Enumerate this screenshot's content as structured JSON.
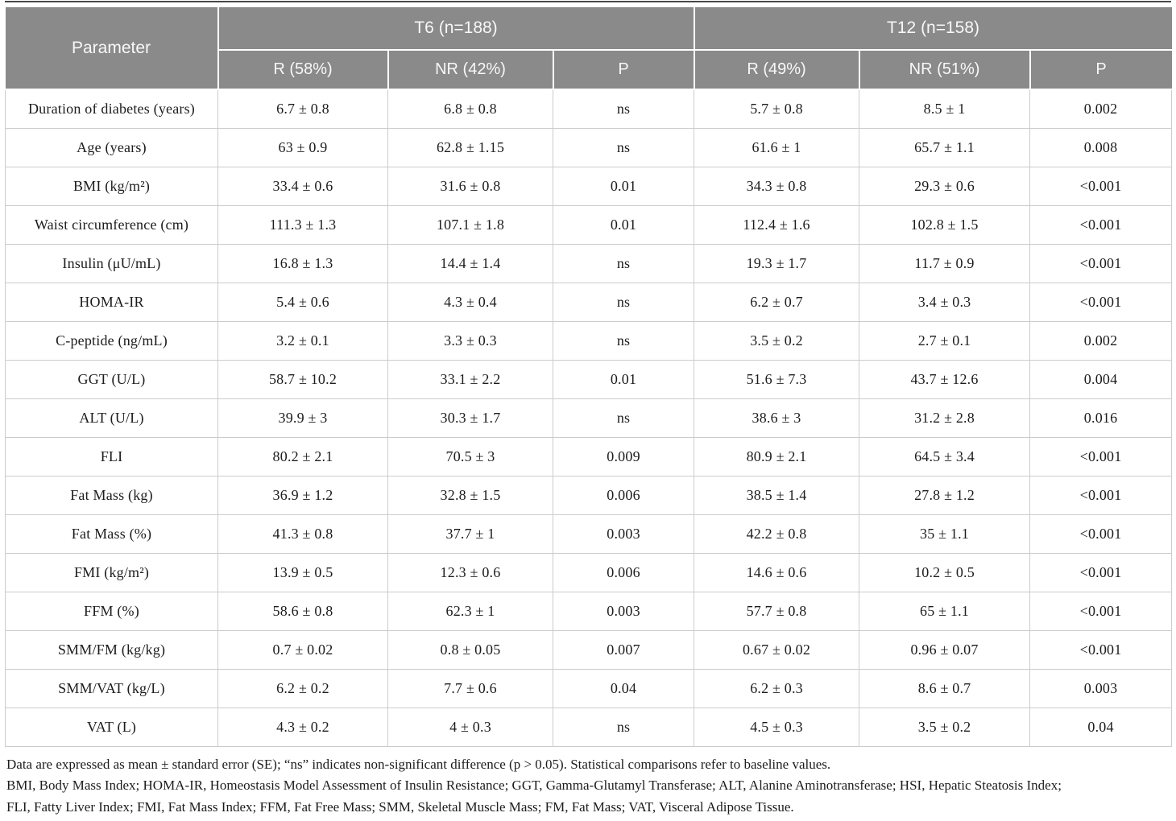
{
  "table": {
    "header": {
      "parameter_label": "Parameter",
      "groups": [
        {
          "label": "T6 (n=188)",
          "subcolumns": [
            "R (58%)",
            "NR (42%)",
            "P"
          ]
        },
        {
          "label": "T12 (n=158)",
          "subcolumns": [
            "R (49%)",
            "NR (51%)",
            "P"
          ]
        }
      ]
    },
    "rows": [
      {
        "parameter": "Duration of diabetes (years)",
        "t6_r": "6.7 ± 0.8",
        "t6_nr": "6.8 ± 0.8",
        "t6_p": "ns",
        "t12_r": "5.7 ± 0.8",
        "t12_nr": "8.5 ± 1",
        "t12_p": "0.002"
      },
      {
        "parameter": "Age (years)",
        "t6_r": "63 ± 0.9",
        "t6_nr": "62.8 ± 1.15",
        "t6_p": "ns",
        "t12_r": "61.6 ± 1",
        "t12_nr": "65.7 ± 1.1",
        "t12_p": "0.008"
      },
      {
        "parameter": "BMI (kg/m²)",
        "t6_r": "33.4 ± 0.6",
        "t6_nr": "31.6 ± 0.8",
        "t6_p": "0.01",
        "t12_r": "34.3 ± 0.8",
        "t12_nr": "29.3 ± 0.6",
        "t12_p": "<0.001"
      },
      {
        "parameter": "Waist circumference (cm)",
        "t6_r": "111.3 ± 1.3",
        "t6_nr": "107.1 ± 1.8",
        "t6_p": "0.01",
        "t12_r": "112.4 ± 1.6",
        "t12_nr": "102.8 ± 1.5",
        "t12_p": "<0.001"
      },
      {
        "parameter": "Insulin (μU/mL)",
        "t6_r": "16.8 ± 1.3",
        "t6_nr": "14.4 ± 1.4",
        "t6_p": "ns",
        "t12_r": "19.3 ± 1.7",
        "t12_nr": "11.7 ± 0.9",
        "t12_p": "<0.001"
      },
      {
        "parameter": "HOMA-IR",
        "t6_r": "5.4 ± 0.6",
        "t6_nr": "4.3 ± 0.4",
        "t6_p": "ns",
        "t12_r": "6.2 ± 0.7",
        "t12_nr": "3.4 ± 0.3",
        "t12_p": "<0.001"
      },
      {
        "parameter": "C-peptide (ng/mL)",
        "t6_r": "3.2 ± 0.1",
        "t6_nr": "3.3 ± 0.3",
        "t6_p": "ns",
        "t12_r": "3.5 ± 0.2",
        "t12_nr": "2.7 ± 0.1",
        "t12_p": "0.002"
      },
      {
        "parameter": "GGT (U/L)",
        "t6_r": "58.7 ± 10.2",
        "t6_nr": "33.1 ± 2.2",
        "t6_p": "0.01",
        "t12_r": "51.6 ± 7.3",
        "t12_nr": "43.7 ± 12.6",
        "t12_p": "0.004"
      },
      {
        "parameter": "ALT (U/L)",
        "t6_r": "39.9 ± 3",
        "t6_nr": "30.3 ± 1.7",
        "t6_p": "ns",
        "t12_r": "38.6 ± 3",
        "t12_nr": "31.2 ± 2.8",
        "t12_p": "0.016"
      },
      {
        "parameter": "FLI",
        "t6_r": "80.2 ± 2.1",
        "t6_nr": "70.5 ± 3",
        "t6_p": "0.009",
        "t12_r": "80.9 ± 2.1",
        "t12_nr": "64.5 ± 3.4",
        "t12_p": "<0.001"
      },
      {
        "parameter": "Fat Mass (kg)",
        "t6_r": "36.9 ± 1.2",
        "t6_nr": "32.8 ± 1.5",
        "t6_p": "0.006",
        "t12_r": "38.5 ± 1.4",
        "t12_nr": "27.8 ± 1.2",
        "t12_p": "<0.001"
      },
      {
        "parameter": "Fat Mass (%)",
        "t6_r": "41.3 ± 0.8",
        "t6_nr": "37.7 ± 1",
        "t6_p": "0.003",
        "t12_r": "42.2 ± 0.8",
        "t12_nr": "35 ± 1.1",
        "t12_p": "<0.001"
      },
      {
        "parameter": "FMI (kg/m²)",
        "t6_r": "13.9 ± 0.5",
        "t6_nr": "12.3 ± 0.6",
        "t6_p": "0.006",
        "t12_r": "14.6 ± 0.6",
        "t12_nr": "10.2 ± 0.5",
        "t12_p": "<0.001"
      },
      {
        "parameter": "FFM (%)",
        "t6_r": "58.6 ± 0.8",
        "t6_nr": "62.3 ± 1",
        "t6_p": "0.003",
        "t12_r": "57.7 ± 0.8",
        "t12_nr": "65 ± 1.1",
        "t12_p": "<0.001"
      },
      {
        "parameter": "SMM/FM (kg/kg)",
        "t6_r": "0.7 ± 0.02",
        "t6_nr": "0.8 ± 0.05",
        "t6_p": "0.007",
        "t12_r": "0.67 ± 0.02",
        "t12_nr": "0.96 ± 0.07",
        "t12_p": "<0.001"
      },
      {
        "parameter": "SMM/VAT (kg/L)",
        "t6_r": "6.2 ± 0.2",
        "t6_nr": "7.7 ± 0.6",
        "t6_p": "0.04",
        "t12_r": "6.2 ± 0.3",
        "t12_nr": "8.6 ± 0.7",
        "t12_p": "0.003"
      },
      {
        "parameter": "VAT (L)",
        "t6_r": "4.3 ± 0.2",
        "t6_nr": "4 ± 0.3",
        "t6_p": "ns",
        "t12_r": "4.5 ± 0.3",
        "t12_nr": "3.5 ± 0.2",
        "t12_p": "0.04"
      }
    ]
  },
  "footnotes": [
    "Data are expressed as mean ± standard error (SE); “ns” indicates non-significant difference (p > 0.05). Statistical comparisons refer to baseline values.",
    "BMI, Body Mass Index; HOMA-IR, Homeostasis Model Assessment of Insulin Resistance; GGT, Gamma-Glutamyl Transferase; ALT, Alanine Aminotransferase; HSI, Hepatic Steatosis Index;",
    "FLI, Fatty Liver Index; FMI, Fat Mass Index; FFM, Fat Free Mass; SMM, Skeletal Muscle Mass; FM, Fat Mass; VAT, Visceral Adipose Tissue."
  ],
  "colors": {
    "header_bg": "#8a8a8a",
    "header_text": "#f8f8f8",
    "cell_border": "#cccccc",
    "top_rule": "#474747",
    "body_text": "#1c1c1c"
  }
}
